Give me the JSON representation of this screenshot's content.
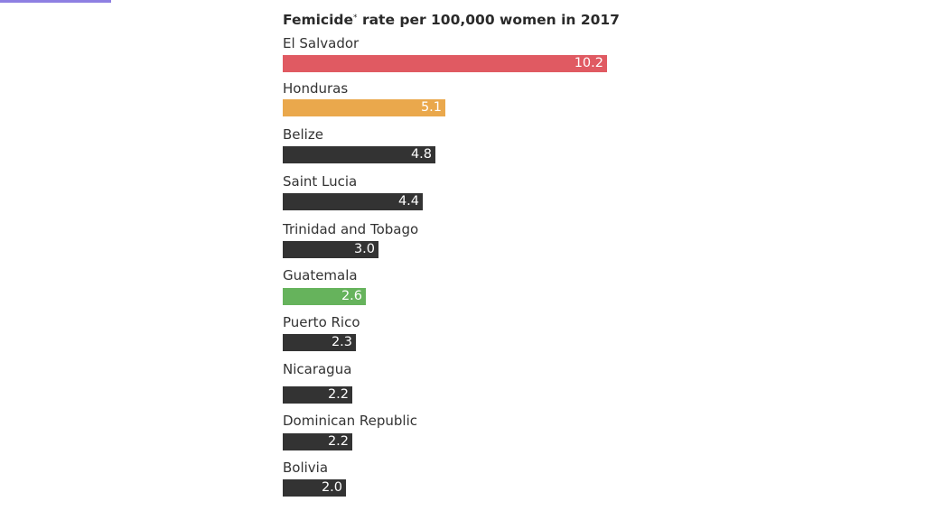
{
  "chart_data": {
    "type": "bar",
    "orientation": "horizontal",
    "title_main": "Femicide",
    "title_marker": "*",
    "title_rest": " rate per 100,000 women in 2017",
    "categories": [
      "El Salvador",
      "Honduras",
      "Belize",
      "Saint Lucia",
      "Trinidad and Tobago",
      "Guatemala",
      "Puerto Rico",
      "Nicaragua",
      "Dominican Republic",
      "Bolivia"
    ],
    "values": [
      10.2,
      5.1,
      4.8,
      4.4,
      3.0,
      2.6,
      2.3,
      2.2,
      2.2,
      2.0
    ],
    "value_labels": [
      "10.2",
      "5.1",
      "4.8",
      "4.4",
      "3.0",
      "2.6",
      "2.3",
      "2.2",
      "2.2",
      "2.0"
    ],
    "colors": [
      "#e05a62",
      "#eaa84c",
      "#333333",
      "#333333",
      "#333333",
      "#66b35c",
      "#333333",
      "#333333",
      "#333333",
      "#333333"
    ],
    "xlim": [
      0,
      10.2
    ],
    "grid": false,
    "legend": "none"
  }
}
